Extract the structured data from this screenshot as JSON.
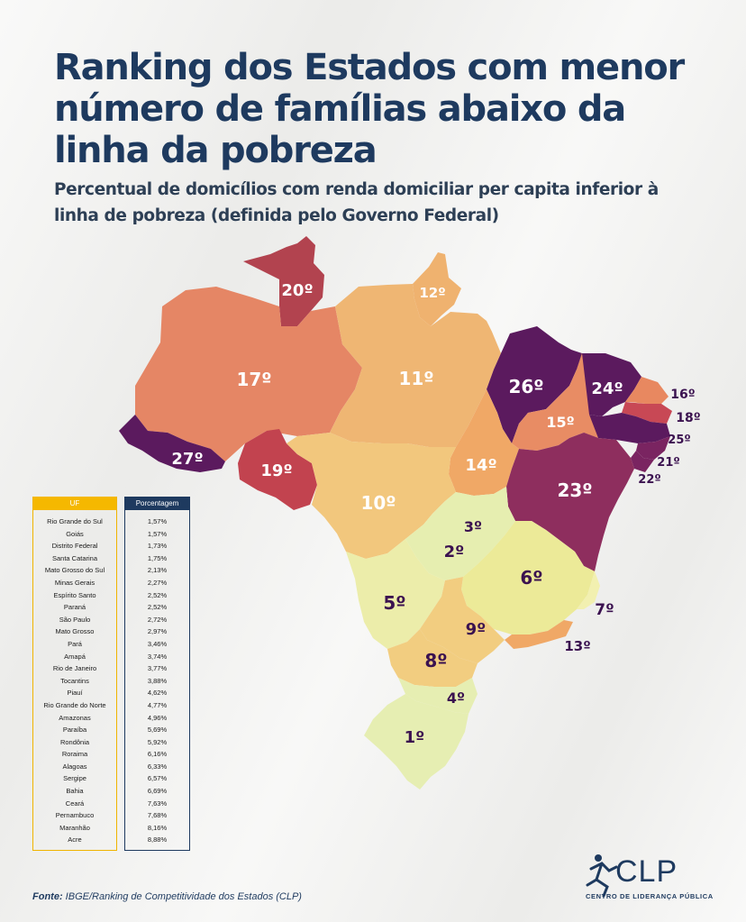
{
  "title": "Ranking dos Estados com menor número de famílias abaixo da linha da pobreza",
  "subtitle": "Percentual de domicílios com renda domiciliar per capita inferior à linha de pobreza (definida pelo Governo Federal)",
  "colors": {
    "title": "#1e3a5f",
    "rank_low": "#e8f0b2",
    "rank_mid": "#f0c070",
    "rank_high": "#d9655a",
    "rank_top": "#5b1a5e"
  },
  "map_labels": [
    {
      "state": "Roraima",
      "rank": "20º"
    },
    {
      "state": "Amapá",
      "rank": "12º"
    },
    {
      "state": "Amazonas",
      "rank": "17º"
    },
    {
      "state": "Pará",
      "rank": "11º"
    },
    {
      "state": "Maranhão",
      "rank": "26º"
    },
    {
      "state": "Ceará",
      "rank": "24º"
    },
    {
      "state": "Rio Grande do Norte",
      "rank": "16º"
    },
    {
      "state": "Paraíba",
      "rank": "18º"
    },
    {
      "state": "Pernambuco",
      "rank": "25º"
    },
    {
      "state": "Alagoas",
      "rank": "21º"
    },
    {
      "state": "Sergipe",
      "rank": "22º"
    },
    {
      "state": "Piauí",
      "rank": "15º"
    },
    {
      "state": "Acre",
      "rank": "27º"
    },
    {
      "state": "Rondônia",
      "rank": "19º"
    },
    {
      "state": "Tocantins",
      "rank": "14º"
    },
    {
      "state": "Bahia",
      "rank": "23º"
    },
    {
      "state": "Mato Grosso",
      "rank": "10º"
    },
    {
      "state": "Distrito Federal",
      "rank": "3º"
    },
    {
      "state": "Goiás",
      "rank": "2º"
    },
    {
      "state": "Minas Gerais",
      "rank": "6º"
    },
    {
      "state": "Espírito Santo",
      "rank": "7º"
    },
    {
      "state": "Mato Grosso do Sul",
      "rank": "5º"
    },
    {
      "state": "São Paulo",
      "rank": "9º"
    },
    {
      "state": "Rio de Janeiro",
      "rank": "13º"
    },
    {
      "state": "Paraná",
      "rank": "8º"
    },
    {
      "state": "Santa Catarina",
      "rank": "4º"
    },
    {
      "state": "Rio Grande do Sul",
      "rank": "1º"
    }
  ],
  "table": {
    "header_uf": "UF",
    "header_pct": "Porcentagem",
    "rows": [
      {
        "uf": "Rio Grande do Sul",
        "pct": "1,57%"
      },
      {
        "uf": "Goiás",
        "pct": "1,57%"
      },
      {
        "uf": "Distrito Federal",
        "pct": "1,73%"
      },
      {
        "uf": "Santa Catarina",
        "pct": "1,75%"
      },
      {
        "uf": "Mato Grosso do Sul",
        "pct": "2,13%"
      },
      {
        "uf": "Minas Gerais",
        "pct": "2,27%"
      },
      {
        "uf": "Espírito Santo",
        "pct": "2,52%"
      },
      {
        "uf": "Paraná",
        "pct": "2,52%"
      },
      {
        "uf": "São Paulo",
        "pct": "2,72%"
      },
      {
        "uf": "Mato Grosso",
        "pct": "2,97%"
      },
      {
        "uf": "Pará",
        "pct": "3,46%"
      },
      {
        "uf": "Amapá",
        "pct": "3,74%"
      },
      {
        "uf": "Rio de Janeiro",
        "pct": "3,77%"
      },
      {
        "uf": "Tocantins",
        "pct": "3,88%"
      },
      {
        "uf": "Piauí",
        "pct": "4,62%"
      },
      {
        "uf": "Rio Grande do Norte",
        "pct": "4,77%"
      },
      {
        "uf": "Amazonas",
        "pct": "4,96%"
      },
      {
        "uf": "Paraíba",
        "pct": "5,69%"
      },
      {
        "uf": "Rondônia",
        "pct": "5,92%"
      },
      {
        "uf": "Roraima",
        "pct": "6,16%"
      },
      {
        "uf": "Alagoas",
        "pct": "6,33%"
      },
      {
        "uf": "Sergipe",
        "pct": "6,57%"
      },
      {
        "uf": "Bahia",
        "pct": "6,69%"
      },
      {
        "uf": "Ceará",
        "pct": "7,63%"
      },
      {
        "uf": "Pernambuco",
        "pct": "7,68%"
      },
      {
        "uf": "Maranhão",
        "pct": "8,16%"
      },
      {
        "uf": "Acre",
        "pct": "8,88%"
      }
    ]
  },
  "source": {
    "label": "Fonte:",
    "text": "IBGE/Ranking de Competitividade dos Estados (CLP)"
  },
  "logo": {
    "name": "CLP",
    "subtitle": "CENTRO DE LIDERANÇA PÚBLICA",
    "icon": "runner-icon"
  }
}
